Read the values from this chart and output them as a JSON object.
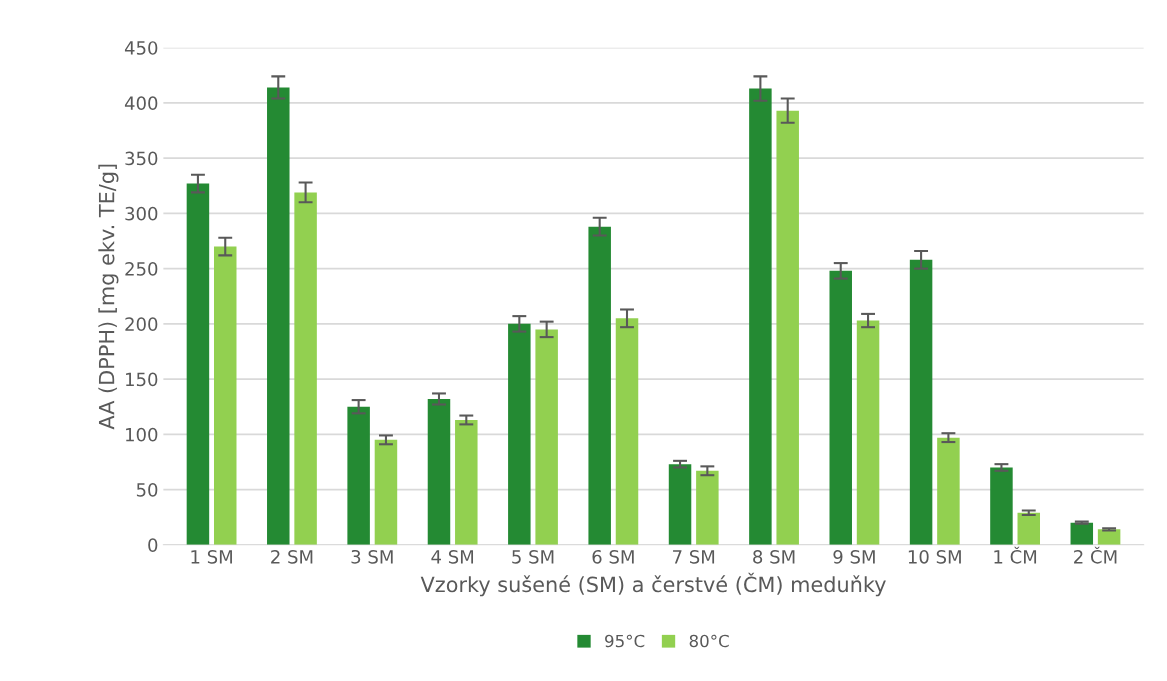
{
  "chart_data": {
    "type": "bar",
    "xlabel": "Vzorky sušené (SM) a čerstvé (ČM) meduňky",
    "ylabel": "AA (DPPH) [mg ekv. TE/g]",
    "categories": [
      "1 SM",
      "2 SM",
      "3 SM",
      "4 SM",
      "5 SM",
      "6 SM",
      "7 SM",
      "8 SM",
      "9 SM",
      "10 SM",
      "1 ČM",
      "2 ČM"
    ],
    "series": [
      {
        "name": "95°C",
        "color": "#248a33",
        "values": [
          327,
          414,
          125,
          132,
          200,
          288,
          73,
          413,
          248,
          258,
          70,
          20
        ],
        "errors": [
          8,
          10,
          6,
          5,
          7,
          8,
          3,
          11,
          7,
          8,
          3,
          1
        ]
      },
      {
        "name": "80°C",
        "color": "#92d050",
        "values": [
          270,
          319,
          95,
          113,
          195,
          205,
          67,
          393,
          203,
          97,
          29,
          14
        ],
        "errors": [
          8,
          9,
          4,
          4,
          7,
          8,
          4,
          11,
          6,
          4,
          2,
          1
        ]
      }
    ],
    "ylim": [
      0,
      450
    ],
    "yticks": [
      0,
      50,
      100,
      150,
      200,
      250,
      300,
      350,
      400,
      450
    ],
    "grid": "y",
    "legend": "bottom"
  }
}
